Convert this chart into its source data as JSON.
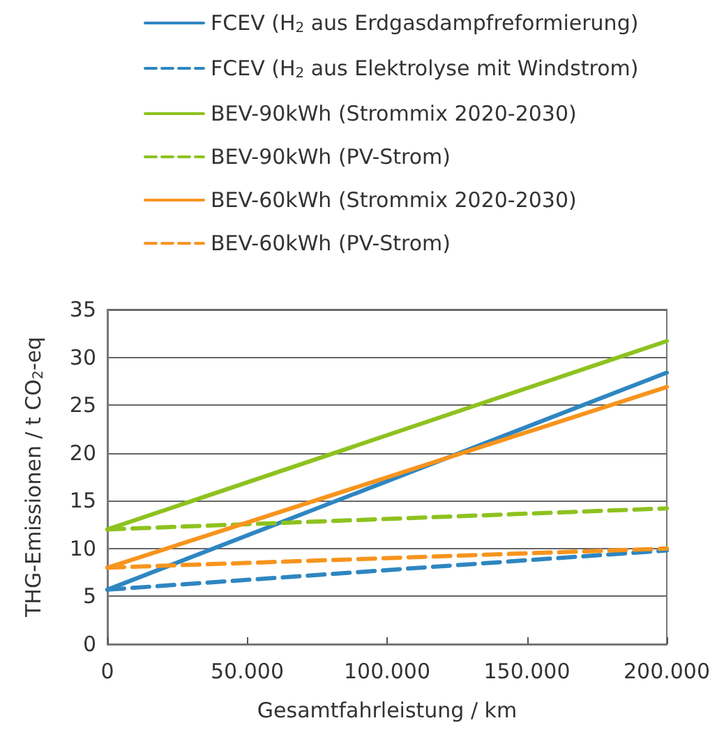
{
  "chart_data": {
    "type": "line",
    "xlabel": "Gesamtfahrleistung / km",
    "ylabel": "THG-Emissionen / t CO$_{2}$-eq",
    "x": [
      0,
      200000
    ],
    "xlim": [
      0,
      200000
    ],
    "xticks": [
      {
        "value": 0,
        "label": "0"
      },
      {
        "value": 50000,
        "label": "50.000"
      },
      {
        "value": 100000,
        "label": "100.000"
      },
      {
        "value": 150000,
        "label": "150.000"
      },
      {
        "value": 200000,
        "label": "200.000"
      }
    ],
    "ylim": [
      0,
      35
    ],
    "yticks": [
      0,
      5,
      10,
      15,
      20,
      25,
      30,
      35
    ],
    "grid": "y",
    "legend": "top",
    "marker": "none",
    "series": [
      {
        "name": "FCEV (H$_{2}$ aus Erdgasdampfreformierung)",
        "color": "#2e86c1",
        "line_style": "solid",
        "values": [
          5.7,
          28.4
        ]
      },
      {
        "name": "FCEV (H$_{2}$ aus Elektrolyse mit Windstrom)",
        "color": "#2e86c1",
        "line_style": "dashed",
        "values": [
          5.7,
          9.8
        ]
      },
      {
        "name": "BEV-90kWh (Strommix 2020-2030)",
        "color": "#8dc21f",
        "line_style": "solid",
        "values": [
          12,
          31.7
        ]
      },
      {
        "name": "BEV-90kWh (PV-Strom)",
        "color": "#8dc21f",
        "line_style": "dashed",
        "values": [
          12,
          14.2
        ]
      },
      {
        "name": "BEV-60kWh (Strommix 2020-2030)",
        "color": "#f7941d",
        "line_style": "solid",
        "values": [
          8,
          26.9
        ]
      },
      {
        "name": "BEV-60kWh (PV-Strom)",
        "color": "#f7941d",
        "line_style": "dashed",
        "values": [
          8,
          10
        ]
      }
    ]
  }
}
